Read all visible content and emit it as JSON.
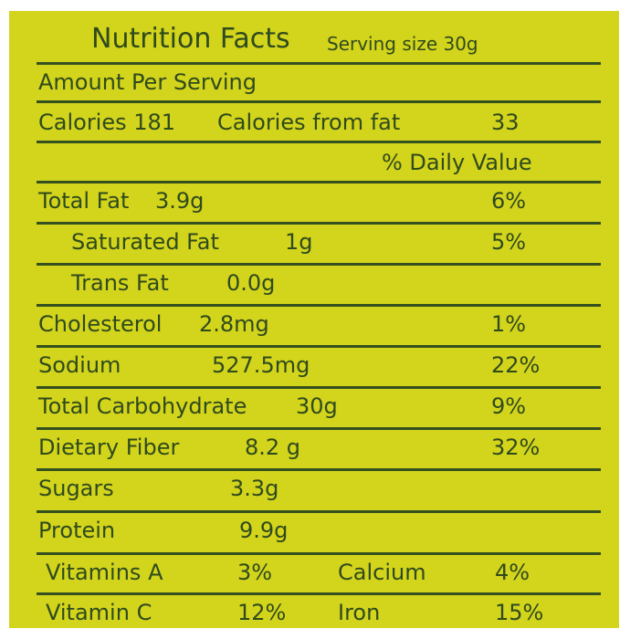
{
  "header": {
    "title": "Nutrition Facts",
    "serving_size": "Serving size 30g"
  },
  "amount_per_serving": "Amount Per Serving",
  "calories": {
    "label": "Calories 181",
    "from_fat_label": "Calories from fat",
    "from_fat_value": "33"
  },
  "daily_value_header": "% Daily Value",
  "nutrients": [
    {
      "name": "Total Fat",
      "amount": "3.9g",
      "daily_value": "6%"
    },
    {
      "name": "Saturated Fat",
      "amount": "1g",
      "daily_value": "5%"
    },
    {
      "name": "Trans Fat",
      "amount": "0.0g"
    },
    {
      "name": "Cholesterol",
      "amount": "2.8mg",
      "daily_value": "1%"
    },
    {
      "name": "Sodium",
      "amount": "527.5mg",
      "daily_value": "22%"
    },
    {
      "name": "Total Carbohydrate",
      "amount": "30g",
      "daily_value": "9%"
    },
    {
      "name": "Dietary Fiber",
      "amount": "8.2 g",
      "daily_value": "32%"
    },
    {
      "name": "Sugars",
      "amount": "3.3g"
    },
    {
      "name": "Protein",
      "amount": "9.9g"
    }
  ],
  "vitamins": [
    {
      "name": "Vitamins A",
      "value": "3%",
      "name2": "Calcium",
      "value2": "4%"
    },
    {
      "name": "Vitamin C",
      "value": "12%",
      "name2": "Iron",
      "value2": "15%"
    }
  ]
}
